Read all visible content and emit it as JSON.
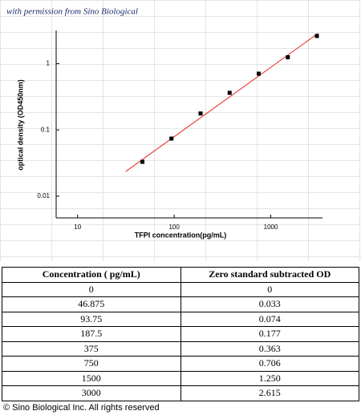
{
  "chart_data": {
    "type": "scatter",
    "title": "with permission from Sino Biological",
    "x_label": "TFPI  concentration(pg/mL)",
    "y_label": "optical density (OD450nm)",
    "x": [
      46.875,
      93.75,
      187.5,
      375,
      750,
      1500,
      3000
    ],
    "values": [
      0.033,
      0.074,
      0.177,
      0.363,
      0.706,
      1.25,
      2.615
    ],
    "color": "#000000",
    "fit": {
      "x": [
        31.5,
        3090
      ],
      "values": [
        0.0236,
        2.87
      ],
      "color": "#e8231e"
    },
    "x_log": true,
    "y_log": true,
    "xlim": [
      6,
      3300
    ],
    "ylim": [
      0.0047,
      3
    ],
    "xticks": [
      10,
      100,
      1000
    ],
    "yticks": [
      0.01,
      0.1,
      1
    ]
  },
  "table": {
    "header": [
      "Concentration ( pg/mL)",
      "Zero standard subtracted OD"
    ],
    "rows": [
      [
        "0",
        "0"
      ],
      [
        "46.875",
        "0.033"
      ],
      [
        "93.75",
        "0.074"
      ],
      [
        "187.5",
        "0.177"
      ],
      [
        "375",
        "0.363"
      ],
      [
        "750",
        "0.706"
      ],
      [
        "1500",
        "1.250"
      ],
      [
        "3000",
        "2.615"
      ]
    ]
  },
  "footer": "© Sino Biological Inc. All rights reserved"
}
